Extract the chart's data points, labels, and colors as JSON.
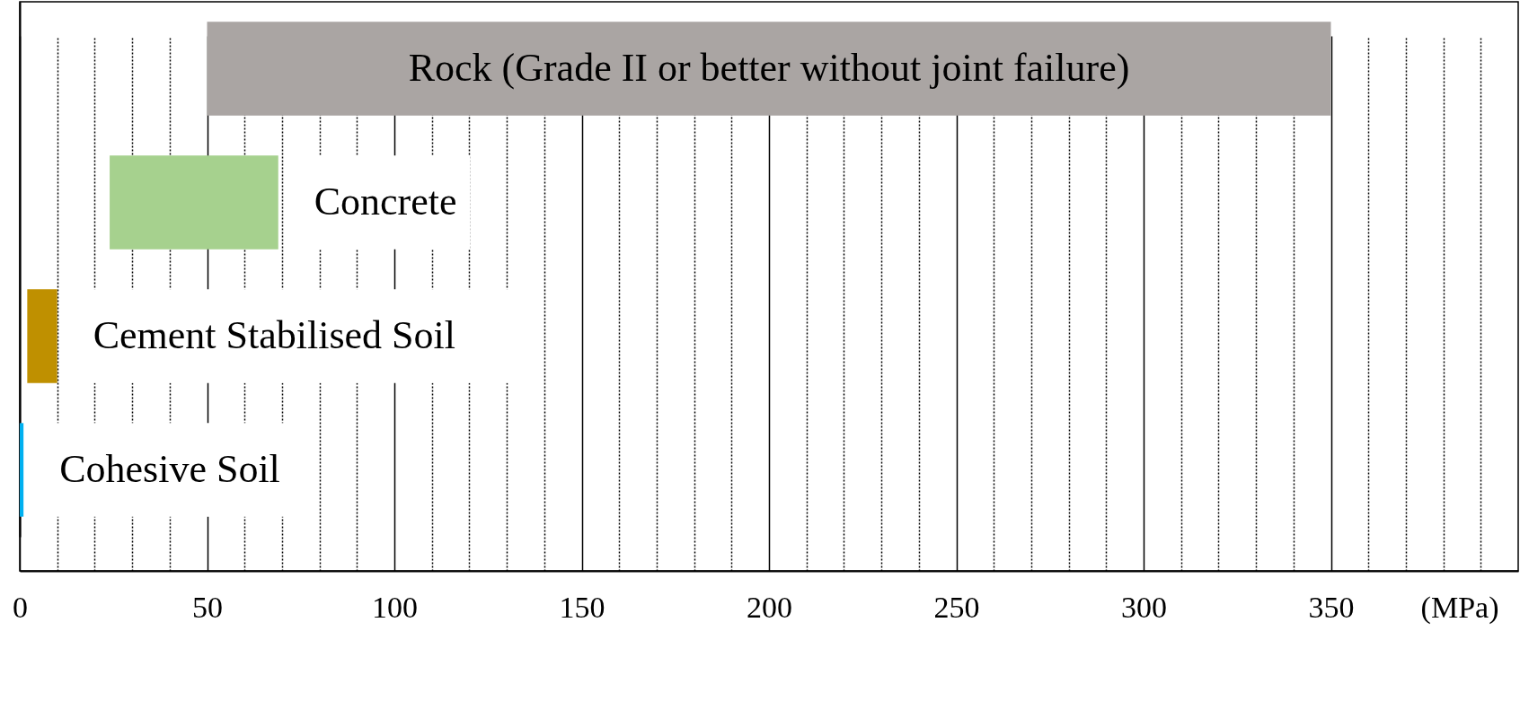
{
  "chart_data": {
    "type": "bar",
    "orientation": "horizontal",
    "categories": [
      "Rock (Grade II or better without joint failure)",
      "Concrete",
      "Cement Stabilised Soil",
      "Cohesive Soil"
    ],
    "base": [
      50,
      24,
      2,
      0
    ],
    "values": [
      300,
      45,
      8,
      1
    ],
    "colors": [
      "#aaa5a3",
      "#a6d18e",
      "#bf9000",
      "#00b0f0"
    ],
    "xlabel": "(MPa)",
    "xlim": [
      0,
      400
    ],
    "xticks": [
      0,
      {
        "value": 10,
        "label": null
      },
      {
        "value": 20,
        "label": null
      },
      {
        "value": 30,
        "label": null
      },
      {
        "value": 40,
        "label": null
      },
      50,
      {
        "value": 60,
        "label": null
      },
      {
        "value": 70,
        "label": null
      },
      {
        "value": 80,
        "label": null
      },
      {
        "value": 90,
        "label": null
      },
      100,
      {
        "value": 110,
        "label": null
      },
      {
        "value": 120,
        "label": null
      },
      {
        "value": 130,
        "label": null
      },
      {
        "value": 140,
        "label": null
      },
      150,
      {
        "value": 160,
        "label": null
      },
      {
        "value": 170,
        "label": null
      },
      {
        "value": 180,
        "label": null
      },
      {
        "value": 190,
        "label": null
      },
      200,
      {
        "value": 210,
        "label": null
      },
      {
        "value": 220,
        "label": null
      },
      {
        "value": 230,
        "label": null
      },
      {
        "value": 240,
        "label": null
      },
      250,
      {
        "value": 260,
        "label": null
      },
      {
        "value": 270,
        "label": null
      },
      {
        "value": 280,
        "label": null
      },
      {
        "value": 290,
        "label": null
      },
      300,
      {
        "value": 310,
        "label": null
      },
      {
        "value": 320,
        "label": null
      },
      {
        "value": 330,
        "label": null
      },
      {
        "value": 340,
        "label": null
      },
      350,
      {
        "value": 360,
        "label": null
      },
      {
        "value": 370,
        "label": null
      },
      {
        "value": 380,
        "label": null
      },
      {
        "value": 390,
        "label": null
      }
    ],
    "grid": "x",
    "tick_labels": "x"
  }
}
